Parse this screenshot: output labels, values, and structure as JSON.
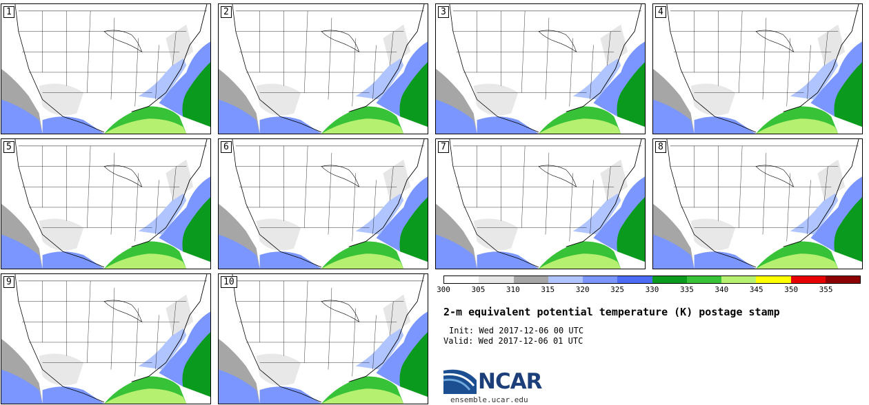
{
  "panels": [
    {
      "label": "1"
    },
    {
      "label": "2"
    },
    {
      "label": "3"
    },
    {
      "label": "4"
    },
    {
      "label": "5"
    },
    {
      "label": "6"
    },
    {
      "label": "7"
    },
    {
      "label": "8"
    },
    {
      "label": "9"
    },
    {
      "label": "10"
    }
  ],
  "colorbar": {
    "levels": [
      "300",
      "305",
      "310",
      "315",
      "320",
      "325",
      "330",
      "335",
      "340",
      "345",
      "350",
      "355"
    ],
    "colors": [
      "#ffffff",
      "#e6e6e6",
      "#a6a6a6",
      "#b0c4ff",
      "#7b97ff",
      "#4d6cf5",
      "#0a9a1e",
      "#38c238",
      "#b6f070",
      "#ffff00",
      "#e60000",
      "#8c0000"
    ]
  },
  "title": "2-m equivalent potential temperature (K) postage stamp",
  "init": "Init: Wed 2017-12-06 00 UTC",
  "valid": "Valid: Wed 2017-12-06 01 UTC",
  "logo": {
    "text": "NCAR",
    "url": "ensemble.ucar.edu"
  }
}
